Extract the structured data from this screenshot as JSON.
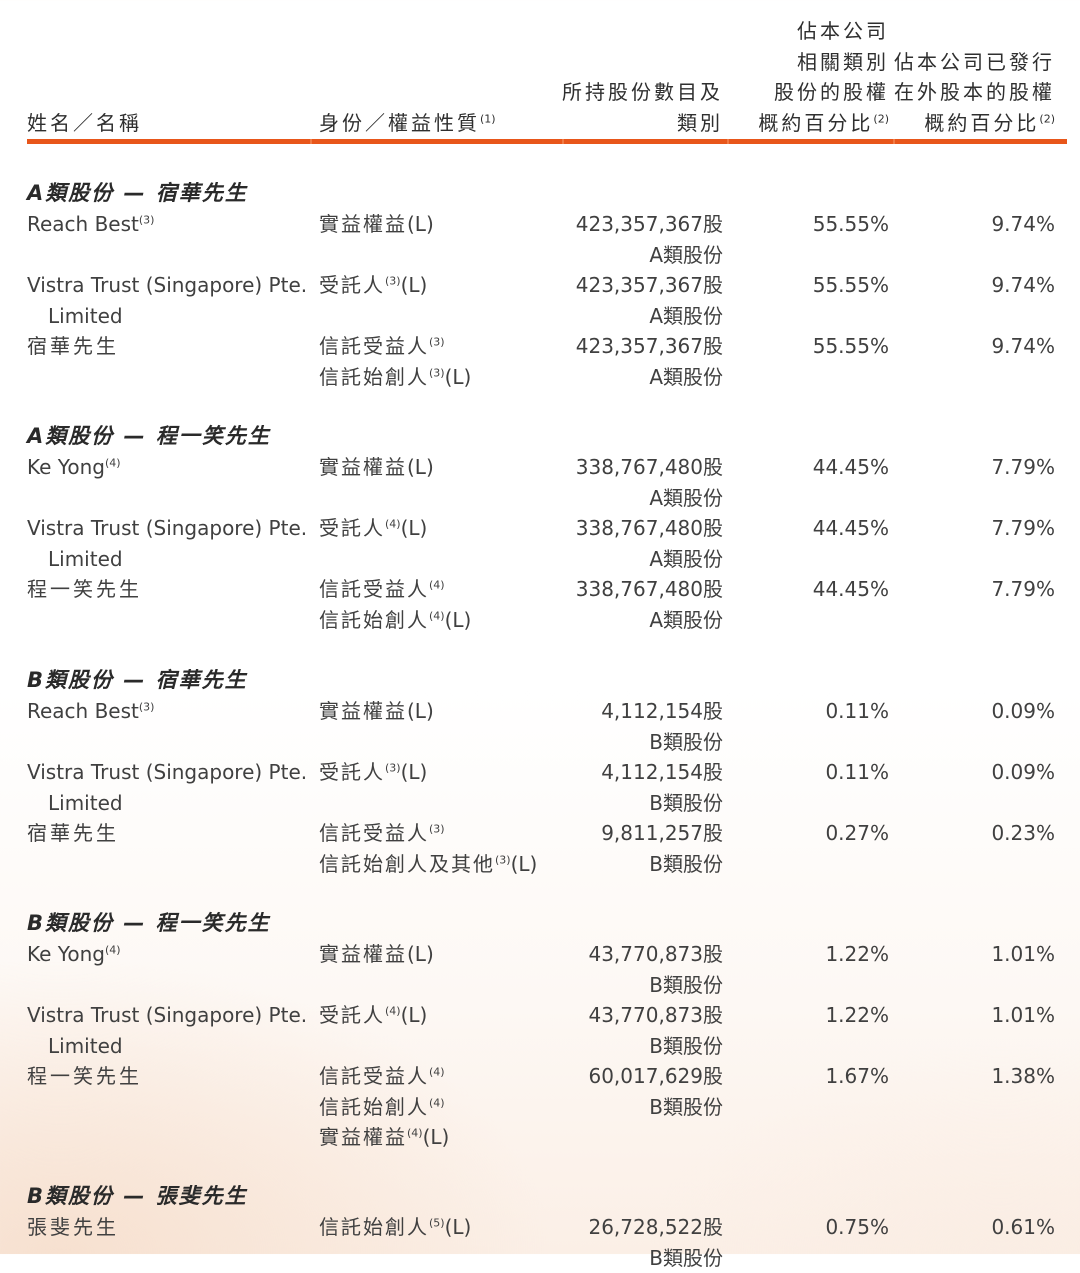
{
  "accent_color": "#e8561a",
  "header": {
    "name": {
      "text": "姓名／名稱"
    },
    "capacity": {
      "text": "身份／權益性質",
      "note": "(1)"
    },
    "shares": {
      "line1": "所持股份數目及",
      "line2": "類別"
    },
    "pct_class": {
      "line1": "佔本公司",
      "line2": "相關類別",
      "line3": "股份的股權",
      "line4": "概約百分比",
      "note": "(2)"
    },
    "pct_total": {
      "line1": "佔本公司已發行",
      "line2": "在外股本的股權",
      "line3": "概約百分比",
      "note": "(2)"
    }
  },
  "sections": [
    {
      "title": "A類股份 — 宿華先生",
      "rows": [
        {
          "name": "Reach Best",
          "name_note": "(3)",
          "name_cont": "",
          "capacity": [
            {
              "text": "實益權益",
              "note": "",
              "suffix": "(L)"
            }
          ],
          "shares": "423,357,367股",
          "share_class": "A類股份",
          "pct_class": "55.55%",
          "pct_total": "9.74%"
        },
        {
          "name": "Vistra Trust (Singapore) Pte.",
          "name_note": "",
          "name_cont": "Limited",
          "capacity": [
            {
              "text": "受託人",
              "note": "(3)",
              "suffix": "(L)"
            }
          ],
          "shares": "423,357,367股",
          "share_class": "A類股份",
          "pct_class": "55.55%",
          "pct_total": "9.74%"
        },
        {
          "name": "宿華先生",
          "name_note": "",
          "name_cont": "",
          "capacity": [
            {
              "text": "信託受益人",
              "note": "(3)",
              "suffix": ""
            },
            {
              "text": "信託始創人",
              "note": "(3)",
              "suffix": "(L)"
            }
          ],
          "shares": "423,357,367股",
          "share_class": "A類股份",
          "pct_class": "55.55%",
          "pct_total": "9.74%"
        }
      ]
    },
    {
      "title": "A類股份 — 程一笑先生",
      "rows": [
        {
          "name": "Ke Yong",
          "name_note": "(4)",
          "name_cont": "",
          "capacity": [
            {
              "text": "實益權益",
              "note": "",
              "suffix": "(L)"
            }
          ],
          "shares": "338,767,480股",
          "share_class": "A類股份",
          "pct_class": "44.45%",
          "pct_total": "7.79%"
        },
        {
          "name": "Vistra Trust (Singapore) Pte.",
          "name_note": "",
          "name_cont": "Limited",
          "capacity": [
            {
              "text": "受託人",
              "note": "(4)",
              "suffix": "(L)"
            }
          ],
          "shares": "338,767,480股",
          "share_class": "A類股份",
          "pct_class": "44.45%",
          "pct_total": "7.79%"
        },
        {
          "name": "程一笑先生",
          "name_note": "",
          "name_cont": "",
          "capacity": [
            {
              "text": "信託受益人",
              "note": "(4)",
              "suffix": ""
            },
            {
              "text": "信託始創人",
              "note": "(4)",
              "suffix": "(L)"
            }
          ],
          "shares": "338,767,480股",
          "share_class": "A類股份",
          "pct_class": "44.45%",
          "pct_total": "7.79%"
        }
      ]
    },
    {
      "title": "B類股份 — 宿華先生",
      "rows": [
        {
          "name": "Reach Best",
          "name_note": "(3)",
          "name_cont": "",
          "capacity": [
            {
              "text": "實益權益",
              "note": "",
              "suffix": "(L)"
            }
          ],
          "shares": "4,112,154股",
          "share_class": "B類股份",
          "pct_class": "0.11%",
          "pct_total": "0.09%"
        },
        {
          "name": "Vistra Trust (Singapore) Pte.",
          "name_note": "",
          "name_cont": "Limited",
          "capacity": [
            {
              "text": "受託人",
              "note": "(3)",
              "suffix": "(L)"
            }
          ],
          "shares": "4,112,154股",
          "share_class": "B類股份",
          "pct_class": "0.11%",
          "pct_total": "0.09%"
        },
        {
          "name": "宿華先生",
          "name_note": "",
          "name_cont": "",
          "capacity": [
            {
              "text": "信託受益人",
              "note": "(3)",
              "suffix": ""
            },
            {
              "text": "信託始創人及其他",
              "note": "(3)",
              "suffix": "(L)"
            }
          ],
          "shares": "9,811,257股",
          "share_class": "B類股份",
          "pct_class": "0.27%",
          "pct_total": "0.23%"
        }
      ]
    },
    {
      "title": "B類股份 — 程一笑先生",
      "rows": [
        {
          "name": "Ke Yong",
          "name_note": "(4)",
          "name_cont": "",
          "capacity": [
            {
              "text": "實益權益",
              "note": "",
              "suffix": "(L)"
            }
          ],
          "shares": "43,770,873股",
          "share_class": "B類股份",
          "pct_class": "1.22%",
          "pct_total": "1.01%"
        },
        {
          "name": "Vistra Trust (Singapore) Pte.",
          "name_note": "",
          "name_cont": "Limited",
          "capacity": [
            {
              "text": "受託人",
              "note": "(4)",
              "suffix": "(L)"
            }
          ],
          "shares": "43,770,873股",
          "share_class": "B類股份",
          "pct_class": "1.22%",
          "pct_total": "1.01%"
        },
        {
          "name": "程一笑先生",
          "name_note": "",
          "name_cont": "",
          "capacity": [
            {
              "text": "信託受益人",
              "note": "(4)",
              "suffix": ""
            },
            {
              "text": "信託始創人",
              "note": "(4)",
              "suffix": ""
            },
            {
              "text": "實益權益",
              "note": "(4)",
              "suffix": "(L)"
            }
          ],
          "shares": "60,017,629股",
          "share_class": "B類股份",
          "pct_class": "1.67%",
          "pct_total": "1.38%"
        }
      ]
    },
    {
      "title": "B類股份 — 張斐先生",
      "rows": [
        {
          "name": "張斐先生",
          "name_note": "",
          "name_cont": "",
          "capacity": [
            {
              "text": "信託始創人",
              "note": "(5)",
              "suffix": "(L)"
            }
          ],
          "shares": "26,728,522股",
          "share_class": "B類股份",
          "pct_class": "0.75%",
          "pct_total": "0.61%"
        }
      ]
    }
  ]
}
